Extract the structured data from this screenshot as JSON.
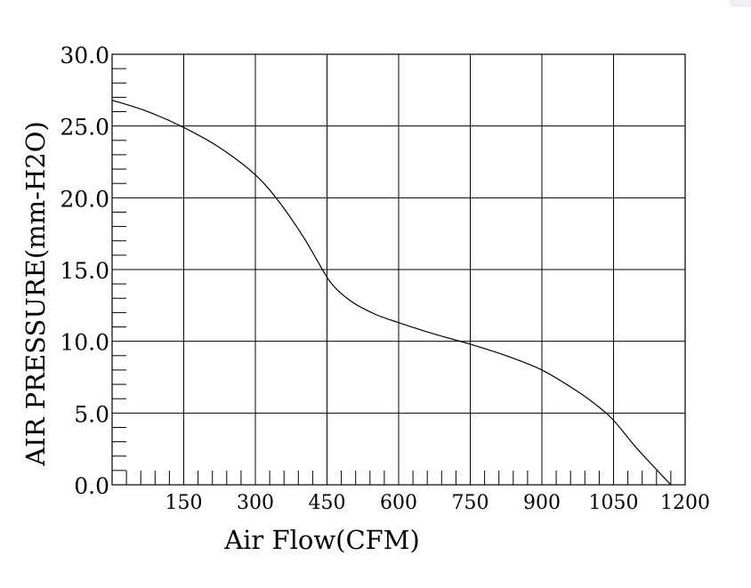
{
  "chart_data": {
    "type": "line",
    "title": "",
    "xlabel": "Air Flow(CFM)",
    "ylabel": "AIR PRESSURE(mm-H2O)",
    "xlim": [
      0,
      1200
    ],
    "ylim": [
      0,
      30
    ],
    "x_ticks": [
      150,
      300,
      450,
      600,
      750,
      900,
      1050,
      1200
    ],
    "x_tick_labels": [
      "150",
      "300",
      "450",
      "600",
      "750",
      "900",
      "1050",
      "1200"
    ],
    "y_ticks": [
      0,
      5,
      10,
      15,
      20,
      25,
      30
    ],
    "y_tick_labels": [
      "0.0",
      "5.0",
      "10.0",
      "15.0",
      "20.0",
      "25.0",
      "30.0"
    ],
    "x_minor_step": 30,
    "y_minor_step": 1,
    "grid": true,
    "line_color": "#000000",
    "series": [
      {
        "x": [
          0,
          75,
          150,
          225,
          300,
          350,
          400,
          430,
          460,
          500,
          550,
          600,
          675,
          750,
          825,
          900,
          975,
          1020,
          1050,
          1100,
          1170
        ],
        "y": [
          26.8,
          26.0,
          24.9,
          23.5,
          21.6,
          19.7,
          17.3,
          15.6,
          14.0,
          12.8,
          11.9,
          11.3,
          10.5,
          9.8,
          9.0,
          8.0,
          6.5,
          5.4,
          4.5,
          2.5,
          0
        ]
      }
    ]
  }
}
